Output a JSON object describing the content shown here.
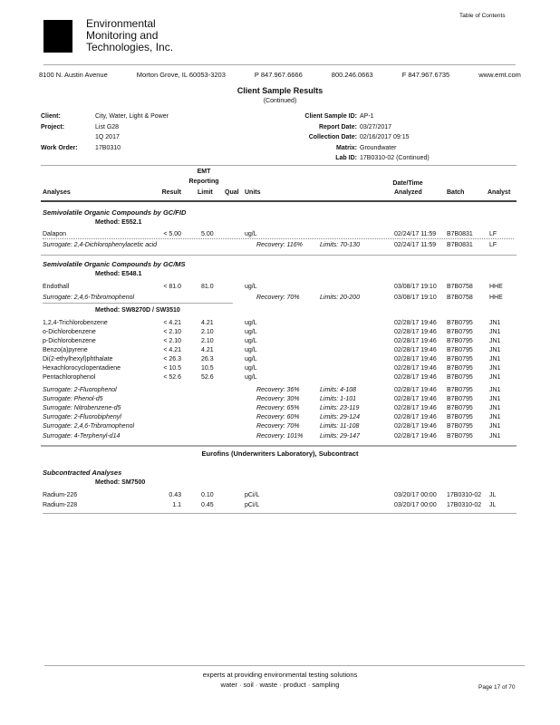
{
  "header": {
    "company": [
      "Environmental",
      "Monitoring and",
      "Technologies, Inc."
    ],
    "toc_link": "Table of Contents",
    "address": [
      "8100 N. Austin Avenue",
      "Morton Grove, IL 60053-3203",
      "P 847.967.6666",
      "800.246.0663",
      "F 847.967.6735",
      "www.emt.com"
    ]
  },
  "title": "Client Sample Results",
  "subtitle": "(Continued)",
  "info": {
    "client_label": "Client:",
    "client": "City, Water, Light & Power",
    "project_label": "Project:",
    "project": "List G28",
    "project2": "1Q 2017",
    "wo_label": "Work Order:",
    "wo": "17B0310",
    "sample_id_label": "Client Sample ID:",
    "sample_id": "AP-1",
    "report_date_label": "Report Date:",
    "report_date": "03/27/2017",
    "coll_label": "Collection Date:",
    "coll": "02/16/2017 09:15",
    "matrix_label": "Matrix:",
    "matrix": "Groundwater",
    "labid_label": "Lab ID:",
    "labid": "17B0310-02 (Continued)"
  },
  "columns": {
    "analyses": "Analyses",
    "result": "Result",
    "emt": "EMT",
    "reporting": "Reporting",
    "limit": "Limit",
    "qual": "Qual",
    "units": "Units",
    "datetime": "Date/Time",
    "analyzed": "Analyzed",
    "batch": "Batch",
    "analyst": "Analyst"
  },
  "sections": [
    {
      "title": "Semivolatile Organic Compounds by GC/FID",
      "method": "Method:  E552.1",
      "rows": [
        {
          "name": "Dalapon",
          "result": "< 5.00",
          "limit": "5.00",
          "units": "ug/L",
          "date": "02/24/17 11:59",
          "batch": "B7B0831",
          "analyst": "LF"
        },
        {
          "name": "Surrogate: 2,4-Dichlorophenylacetic acid",
          "surrogate": true,
          "recovery": "Recovery: 116%",
          "limits": "Limits: 70-130",
          "date": "02/24/17 11:59",
          "batch": "B7B0831",
          "analyst": "LF"
        }
      ]
    },
    {
      "title": "Semivolatile Organic Compounds by GC/MS",
      "method": "Method:  E548.1",
      "rows": [
        {
          "name": "Endothall",
          "result": "< 81.0",
          "limit": "81.0",
          "units": "ug/L",
          "date": "03/08/17 19:10",
          "batch": "B7B0758",
          "analyst": "HHE"
        },
        {
          "name": "Surrogate: 2,4,6-Tribromophenol",
          "surrogate": true,
          "recovery": "Recovery: 70%",
          "limits": "Limits: 20-200",
          "date": "03/08/17 19:10",
          "batch": "B7B0758",
          "analyst": "HHE"
        }
      ]
    },
    {
      "title": "",
      "method": "Method:  SW8270D / SW3510",
      "rows": [
        {
          "name": "1,2,4-Trichlorobenzene",
          "result": "< 4.21",
          "limit": "4.21",
          "units": "ug/L",
          "date": "02/28/17 19:46",
          "batch": "B7B0795",
          "analyst": "JN1"
        },
        {
          "name": "o-Dichlorobenzene",
          "result": "< 2.10",
          "limit": "2.10",
          "units": "ug/L",
          "date": "02/28/17 19:46",
          "batch": "B7B0795",
          "analyst": "JN1"
        },
        {
          "name": "p-Dichlorobenzene",
          "result": "< 2.10",
          "limit": "2.10",
          "units": "ug/L",
          "date": "02/28/17 19:46",
          "batch": "B7B0795",
          "analyst": "JN1"
        },
        {
          "name": "Benzo(a)pyrene",
          "result": "< 4.21",
          "limit": "4.21",
          "units": "ug/L",
          "date": "02/28/17 19:46",
          "batch": "B7B0795",
          "analyst": "JN1"
        },
        {
          "name": "Di(2-ethylhexyl)phthalate",
          "result": "< 26.3",
          "limit": "26.3",
          "units": "ug/L",
          "date": "02/28/17 19:46",
          "batch": "B7B0795",
          "analyst": "JN1"
        },
        {
          "name": "Hexachlorocyclopentadiene",
          "result": "< 10.5",
          "limit": "10.5",
          "units": "ug/L",
          "date": "02/28/17 19:46",
          "batch": "B7B0795",
          "analyst": "JN1"
        },
        {
          "name": "Pentachlorophenol",
          "result": "< 52.6",
          "limit": "52.6",
          "units": "ug/L",
          "date": "02/28/17 19:46",
          "batch": "B7B0795",
          "analyst": "JN1"
        },
        {
          "name": "Surrogate: 2-Fluorophenol",
          "surrogate": true,
          "recovery": "Recovery: 36%",
          "limits": "Limits: 4-108",
          "date": "02/28/17 19:46",
          "batch": "B7B0795",
          "analyst": "JN1"
        },
        {
          "name": "Surrogate: Phenol-d5",
          "surrogate": true,
          "recovery": "Recovery: 30%",
          "limits": "Limits: 1-101",
          "date": "02/28/17 19:46",
          "batch": "B7B0795",
          "analyst": "JN1"
        },
        {
          "name": "Surrogate: Nitrobenzene-d5",
          "surrogate": true,
          "recovery": "Recovery: 65%",
          "limits": "Limits: 23-119",
          "date": "02/28/17 19:46",
          "batch": "B7B0795",
          "analyst": "JN1"
        },
        {
          "name": "Surrogate: 2-Fluorobiphenyl",
          "surrogate": true,
          "recovery": "Recovery: 60%",
          "limits": "Limits: 29-124",
          "date": "02/28/17 19:46",
          "batch": "B7B0795",
          "analyst": "JN1"
        },
        {
          "name": "Surrogate: 2,4,6-Tribromophenol",
          "surrogate": true,
          "recovery": "Recovery: 70%",
          "limits": "Limits: 11-108",
          "date": "02/28/17 19:46",
          "batch": "B7B0795",
          "analyst": "JN1"
        },
        {
          "name": "Surrogate: 4-Terphenyl-d14",
          "surrogate": true,
          "recovery": "Recovery: 101%",
          "limits": "Limits: 29-147",
          "date": "02/28/17 19:46",
          "batch": "B7B0795",
          "analyst": "JN1"
        }
      ]
    },
    {
      "title": "Subcontracted Analyses",
      "method": "Method:  SM7500",
      "rows": [
        {
          "name": "Radium-226",
          "result": "0.43",
          "limit": "0.10",
          "units": "pCi/L",
          "date": "03/20/17 00:00",
          "batch": "17B0310-02",
          "analyst": "JL"
        },
        {
          "name": "Radium-228",
          "result": "1.1",
          "limit": "0.45",
          "units": "pCi/L",
          "date": "03/20/17 00:00",
          "batch": "17B0310-02",
          "analyst": "JL"
        }
      ]
    }
  ],
  "subcontract_label": "Eurofins (Underwriters Laboratory), Subcontract",
  "footer": {
    "tagline": "experts at providing environmental testing solutions",
    "services": "water  ·  soil  ·  waste  ·  product  ·  sampling",
    "page": "Page 17 of 70"
  }
}
